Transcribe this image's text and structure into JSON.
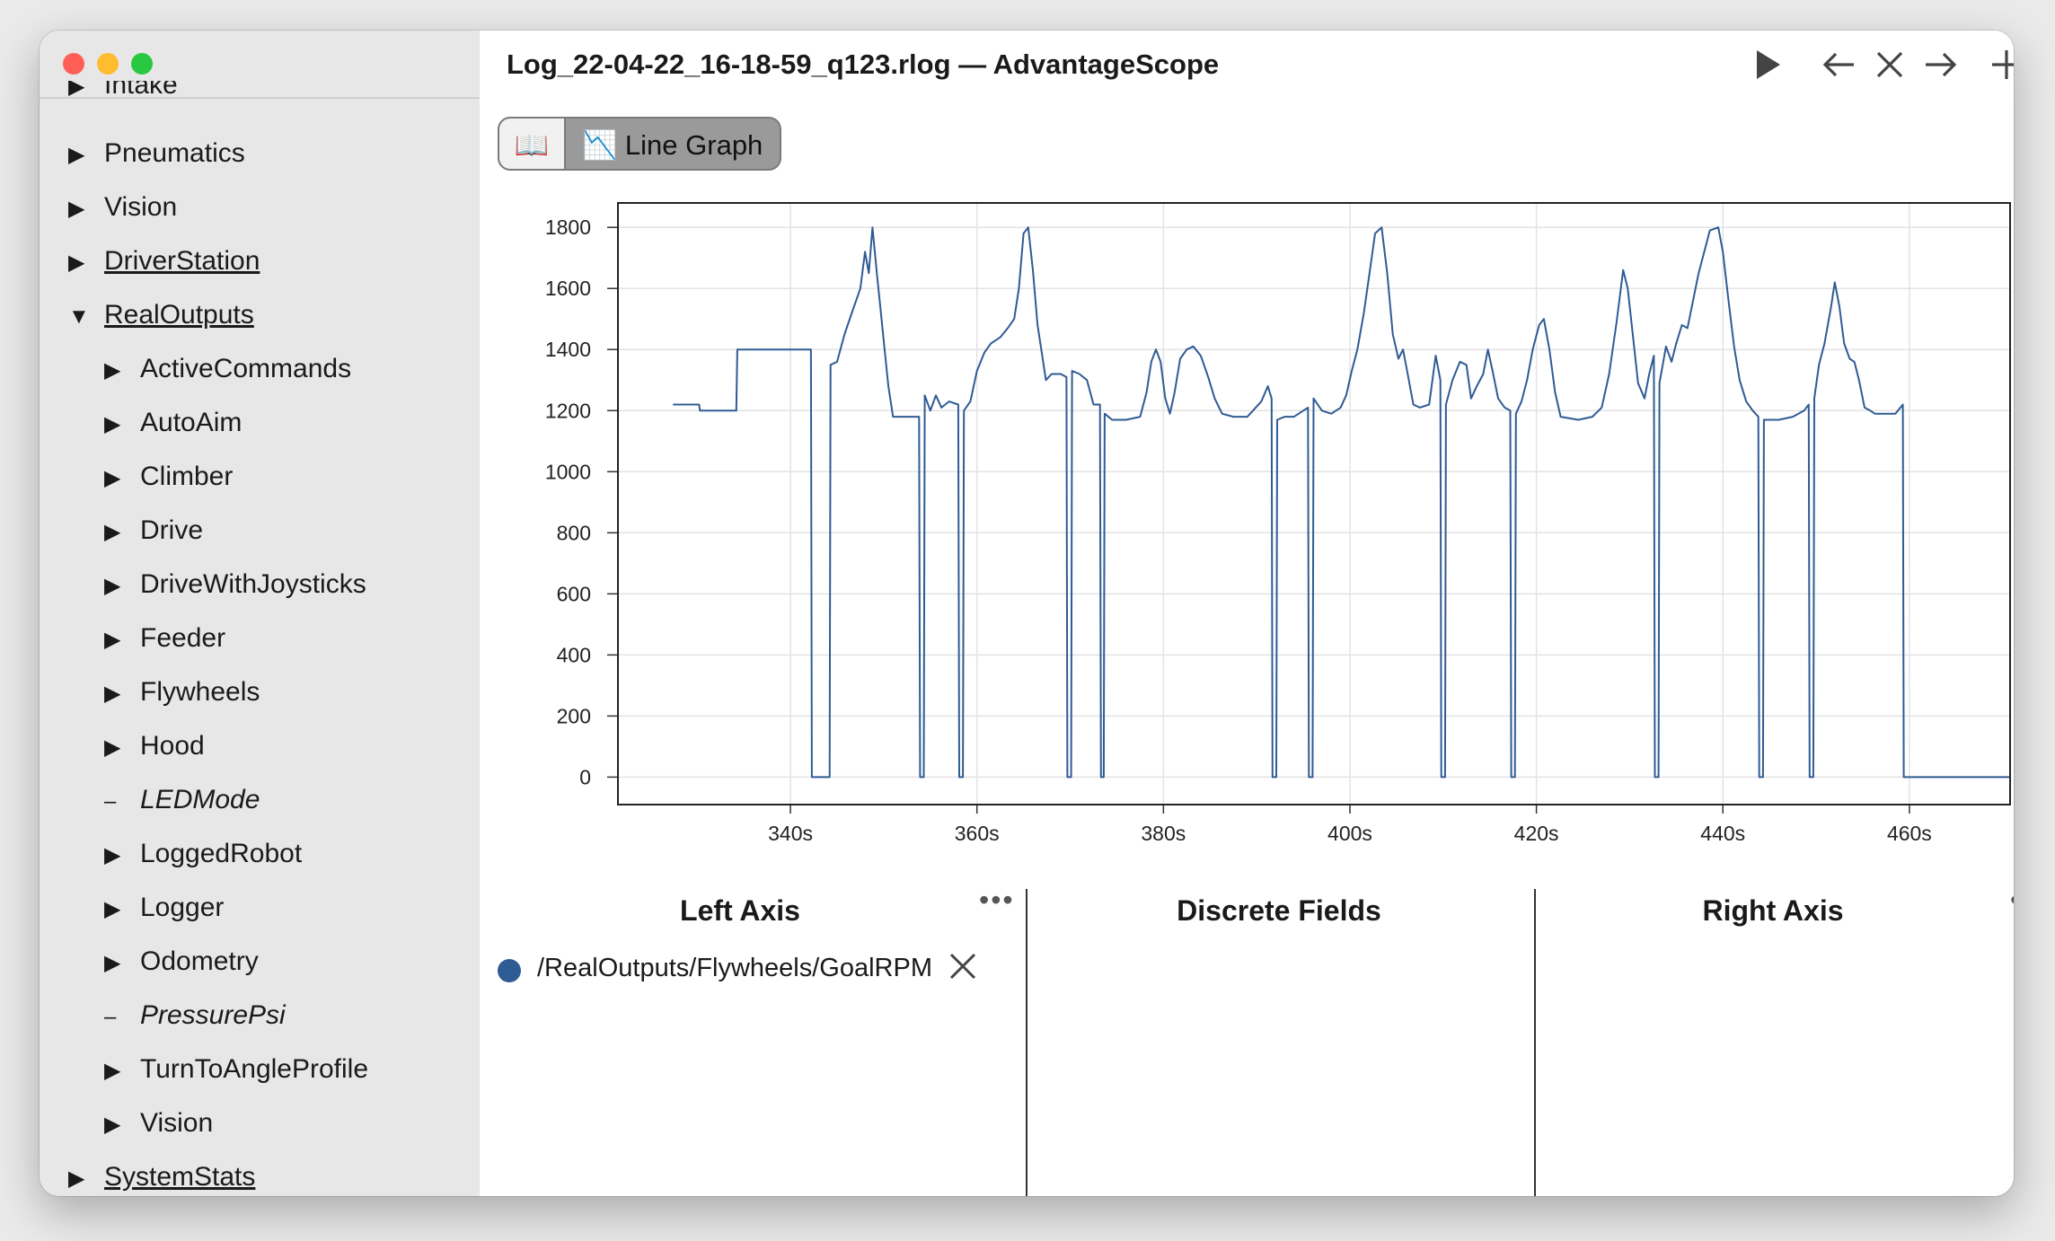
{
  "window": {
    "title": "Log_22-04-22_16-18-59_q123.rlog — AdvantageScope"
  },
  "toolbar": {
    "play_icon": "play-icon",
    "back_icon": "arrow-left-icon",
    "close_icon": "close-icon",
    "forward_icon": "arrow-right-icon",
    "add_icon": "plus-icon"
  },
  "tabs": [
    {
      "label": "📖",
      "icon": "book-icon"
    },
    {
      "label": "📉 Line Graph",
      "icon": "chart-icon"
    }
  ],
  "sidebar": {
    "partial_top_label": "Intake",
    "items": [
      {
        "label": "Pneumatics",
        "indent": 0,
        "state": "collapsed",
        "style": "normal"
      },
      {
        "label": "Vision",
        "indent": 0,
        "state": "collapsed",
        "style": "normal"
      },
      {
        "label": "DriverStation",
        "indent": 0,
        "state": "collapsed",
        "style": "link"
      },
      {
        "label": "RealOutputs",
        "indent": 0,
        "state": "expanded",
        "style": "link"
      },
      {
        "label": "ActiveCommands",
        "indent": 1,
        "state": "collapsed",
        "style": "normal"
      },
      {
        "label": "AutoAim",
        "indent": 1,
        "state": "collapsed",
        "style": "normal"
      },
      {
        "label": "Climber",
        "indent": 1,
        "state": "collapsed",
        "style": "normal"
      },
      {
        "label": "Drive",
        "indent": 1,
        "state": "collapsed",
        "style": "normal"
      },
      {
        "label": "DriveWithJoysticks",
        "indent": 1,
        "state": "collapsed",
        "style": "normal"
      },
      {
        "label": "Feeder",
        "indent": 1,
        "state": "collapsed",
        "style": "normal"
      },
      {
        "label": "Flywheels",
        "indent": 1,
        "state": "collapsed",
        "style": "normal"
      },
      {
        "label": "Hood",
        "indent": 1,
        "state": "collapsed",
        "style": "normal"
      },
      {
        "label": "LEDMode",
        "indent": 1,
        "state": "leaf",
        "style": "italic"
      },
      {
        "label": "LoggedRobot",
        "indent": 1,
        "state": "collapsed",
        "style": "normal"
      },
      {
        "label": "Logger",
        "indent": 1,
        "state": "collapsed",
        "style": "normal"
      },
      {
        "label": "Odometry",
        "indent": 1,
        "state": "collapsed",
        "style": "normal"
      },
      {
        "label": "PressurePsi",
        "indent": 1,
        "state": "leaf",
        "style": "italic"
      },
      {
        "label": "TurnToAngleProfile",
        "indent": 1,
        "state": "collapsed",
        "style": "normal"
      },
      {
        "label": "Vision",
        "indent": 1,
        "state": "collapsed",
        "style": "normal"
      },
      {
        "label": "SystemStats",
        "indent": 0,
        "state": "collapsed",
        "style": "link"
      }
    ]
  },
  "panels": {
    "left_axis": {
      "title": "Left Axis",
      "menu": "•••"
    },
    "discrete": {
      "title": "Discrete Fields"
    },
    "right_axis": {
      "title": "Right Axis",
      "menu": "•••"
    },
    "fields": [
      {
        "label": "/RealOutputs/Flywheels/GoalRPM",
        "color": "#2f5b94",
        "remove_icon": "close-icon"
      }
    ]
  },
  "chart_data": {
    "type": "line",
    "title": "",
    "xlabel": "",
    "ylabel": "",
    "xlim": [
      321.5,
      470.8
    ],
    "ylim": [
      -90,
      1880
    ],
    "x_ticks": [
      "340s",
      "360s",
      "380s",
      "400s",
      "420s",
      "440s",
      "460s"
    ],
    "x_tick_values": [
      340,
      360,
      380,
      400,
      420,
      440,
      460
    ],
    "y_ticks": [
      0,
      200,
      400,
      600,
      800,
      1000,
      1200,
      1400,
      1600,
      1800
    ],
    "grid": true,
    "series": [
      {
        "name": "/RealOutputs/Flywheels/GoalRPM",
        "color": "#2f5b94",
        "points": [
          [
            327.4,
            1220
          ],
          [
            330.2,
            1220
          ],
          [
            330.3,
            1200
          ],
          [
            334.2,
            1200
          ],
          [
            334.3,
            1400
          ],
          [
            342.2,
            1400
          ],
          [
            342.3,
            0
          ],
          [
            344.2,
            0
          ],
          [
            344.3,
            1350
          ],
          [
            345,
            1360
          ],
          [
            345.8,
            1450
          ],
          [
            346.7,
            1530
          ],
          [
            347.5,
            1600
          ],
          [
            348,
            1720
          ],
          [
            348.4,
            1650
          ],
          [
            348.8,
            1800
          ],
          [
            349.3,
            1640
          ],
          [
            349.7,
            1520
          ],
          [
            350.1,
            1400
          ],
          [
            350.5,
            1280
          ],
          [
            351,
            1180
          ],
          [
            353.8,
            1180
          ],
          [
            353.9,
            0
          ],
          [
            354.3,
            0
          ],
          [
            354.4,
            1250
          ],
          [
            355,
            1200
          ],
          [
            355.6,
            1250
          ],
          [
            356.2,
            1210
          ],
          [
            357,
            1230
          ],
          [
            358,
            1220
          ],
          [
            358.1,
            0
          ],
          [
            358.5,
            0
          ],
          [
            358.6,
            1200
          ],
          [
            359.3,
            1230
          ],
          [
            360,
            1330
          ],
          [
            360.8,
            1390
          ],
          [
            361.5,
            1420
          ],
          [
            362.5,
            1440
          ],
          [
            363.3,
            1470
          ],
          [
            364,
            1500
          ],
          [
            364.5,
            1600
          ],
          [
            365,
            1780
          ],
          [
            365.5,
            1800
          ],
          [
            366,
            1660
          ],
          [
            366.5,
            1480
          ],
          [
            367,
            1380
          ],
          [
            367.4,
            1300
          ],
          [
            368,
            1320
          ],
          [
            369,
            1320
          ],
          [
            369.6,
            1310
          ],
          [
            369.7,
            0
          ],
          [
            370.1,
            0
          ],
          [
            370.2,
            1330
          ],
          [
            371,
            1320
          ],
          [
            371.8,
            1300
          ],
          [
            372.5,
            1220
          ],
          [
            373.2,
            1220
          ],
          [
            373.3,
            0
          ],
          [
            373.6,
            0
          ],
          [
            373.7,
            1190
          ],
          [
            374.5,
            1170
          ],
          [
            376,
            1170
          ],
          [
            377.5,
            1180
          ],
          [
            378.2,
            1260
          ],
          [
            378.7,
            1360
          ],
          [
            379.2,
            1400
          ],
          [
            379.7,
            1360
          ],
          [
            380.2,
            1240
          ],
          [
            380.7,
            1190
          ],
          [
            381.2,
            1260
          ],
          [
            381.8,
            1370
          ],
          [
            382.5,
            1400
          ],
          [
            383.2,
            1410
          ],
          [
            384,
            1380
          ],
          [
            384.8,
            1310
          ],
          [
            385.5,
            1240
          ],
          [
            386.3,
            1190
          ],
          [
            387.5,
            1180
          ],
          [
            389,
            1180
          ],
          [
            389.6,
            1200
          ],
          [
            390.5,
            1230
          ],
          [
            391.2,
            1280
          ],
          [
            391.6,
            1240
          ],
          [
            391.7,
            0
          ],
          [
            392.1,
            0
          ],
          [
            392.2,
            1170
          ],
          [
            393,
            1180
          ],
          [
            394,
            1180
          ],
          [
            395,
            1200
          ],
          [
            395.5,
            1210
          ],
          [
            395.6,
            0
          ],
          [
            396,
            0
          ],
          [
            396.1,
            1240
          ],
          [
            397,
            1200
          ],
          [
            398,
            1190
          ],
          [
            399,
            1210
          ],
          [
            399.6,
            1250
          ],
          [
            400.2,
            1330
          ],
          [
            400.8,
            1400
          ],
          [
            401.5,
            1520
          ],
          [
            402.1,
            1650
          ],
          [
            402.7,
            1780
          ],
          [
            403.4,
            1800
          ],
          [
            404,
            1650
          ],
          [
            404.6,
            1450
          ],
          [
            405.2,
            1370
          ],
          [
            405.7,
            1400
          ],
          [
            406.2,
            1320
          ],
          [
            406.8,
            1220
          ],
          [
            407.5,
            1210
          ],
          [
            408.5,
            1220
          ],
          [
            409.2,
            1380
          ],
          [
            409.7,
            1300
          ],
          [
            409.8,
            0
          ],
          [
            410.2,
            0
          ],
          [
            410.3,
            1220
          ],
          [
            411,
            1300
          ],
          [
            411.8,
            1360
          ],
          [
            412.5,
            1350
          ],
          [
            413,
            1240
          ],
          [
            413.6,
            1280
          ],
          [
            414.3,
            1320
          ],
          [
            414.8,
            1400
          ],
          [
            415.3,
            1330
          ],
          [
            415.9,
            1240
          ],
          [
            416.6,
            1210
          ],
          [
            417.2,
            1200
          ],
          [
            417.3,
            0
          ],
          [
            417.7,
            0
          ],
          [
            417.8,
            1190
          ],
          [
            418.4,
            1230
          ],
          [
            419,
            1300
          ],
          [
            419.6,
            1400
          ],
          [
            420.3,
            1480
          ],
          [
            420.8,
            1500
          ],
          [
            421.4,
            1400
          ],
          [
            422,
            1260
          ],
          [
            422.6,
            1180
          ],
          [
            424.5,
            1170
          ],
          [
            426,
            1180
          ],
          [
            427,
            1210
          ],
          [
            427.8,
            1320
          ],
          [
            428.6,
            1490
          ],
          [
            429.3,
            1660
          ],
          [
            429.8,
            1600
          ],
          [
            430.3,
            1460
          ],
          [
            430.9,
            1290
          ],
          [
            431.6,
            1240
          ],
          [
            432.1,
            1320
          ],
          [
            432.6,
            1380
          ],
          [
            432.7,
            0
          ],
          [
            433.1,
            0
          ],
          [
            433.2,
            1290
          ],
          [
            433.9,
            1410
          ],
          [
            434.5,
            1360
          ],
          [
            435,
            1420
          ],
          [
            435.6,
            1480
          ],
          [
            436.2,
            1470
          ],
          [
            436.8,
            1560
          ],
          [
            437.4,
            1650
          ],
          [
            438,
            1720
          ],
          [
            438.6,
            1790
          ],
          [
            439.5,
            1800
          ],
          [
            440,
            1720
          ],
          [
            440.6,
            1560
          ],
          [
            441.2,
            1410
          ],
          [
            441.8,
            1300
          ],
          [
            442.5,
            1230
          ],
          [
            443.2,
            1200
          ],
          [
            443.8,
            1180
          ],
          [
            443.9,
            0
          ],
          [
            444.3,
            0
          ],
          [
            444.4,
            1170
          ],
          [
            446,
            1170
          ],
          [
            447.5,
            1180
          ],
          [
            448.7,
            1200
          ],
          [
            449.2,
            1220
          ],
          [
            449.3,
            0
          ],
          [
            449.7,
            0
          ],
          [
            449.8,
            1240
          ],
          [
            450.3,
            1350
          ],
          [
            450.9,
            1420
          ],
          [
            451.6,
            1540
          ],
          [
            452,
            1620
          ],
          [
            452.5,
            1540
          ],
          [
            453,
            1420
          ],
          [
            453.6,
            1370
          ],
          [
            454.1,
            1360
          ],
          [
            454.6,
            1300
          ],
          [
            455.2,
            1210
          ],
          [
            455.8,
            1200
          ],
          [
            456.3,
            1190
          ],
          [
            457,
            1190
          ],
          [
            457.8,
            1190
          ],
          [
            458.5,
            1190
          ],
          [
            459.3,
            1220
          ],
          [
            459.4,
            0
          ],
          [
            470.8,
            0
          ]
        ]
      }
    ]
  }
}
